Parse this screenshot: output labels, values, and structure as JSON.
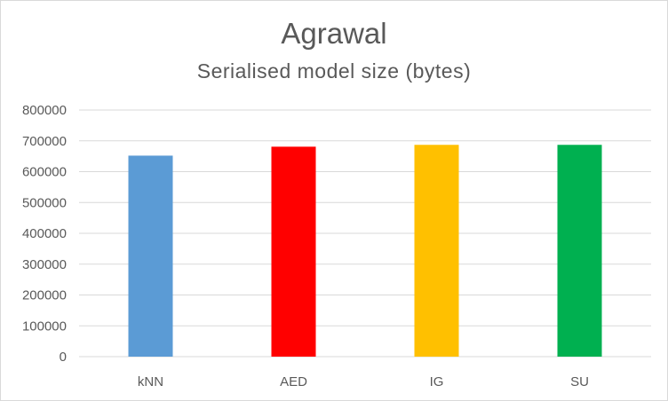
{
  "chart_data": {
    "type": "bar",
    "title": "Agrawal",
    "subtitle": "Serialised model size (bytes)",
    "xlabel": "",
    "ylabel": "",
    "categories": [
      "kNN",
      "AED",
      "IG",
      "SU"
    ],
    "values": [
      652000,
      681000,
      687000,
      687000
    ],
    "colors": [
      "#5b9bd5",
      "#ff0000",
      "#ffc000",
      "#00b050"
    ],
    "ylim": [
      0,
      800000
    ],
    "yticks": [
      0,
      100000,
      200000,
      300000,
      400000,
      500000,
      600000,
      700000,
      800000
    ],
    "ytick_labels": [
      "0",
      "100000",
      "200000",
      "300000",
      "400000",
      "500000",
      "600000",
      "700000",
      "800000"
    ],
    "grid": true,
    "legend": "none"
  }
}
